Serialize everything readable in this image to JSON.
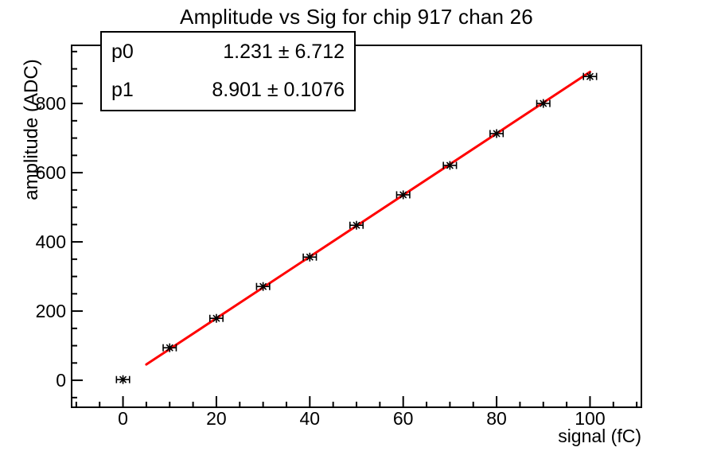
{
  "title": "Amplitude vs Sig for chip 917 chan 26",
  "axes": {
    "x_title": "signal (fC)",
    "y_title": "amplitude (ADC)"
  },
  "stats_box": {
    "rows": [
      {
        "param": "p0",
        "value": "1.231 ± 6.712"
      },
      {
        "param": "p1",
        "value": "8.901 ± 0.1076"
      }
    ]
  },
  "chart_data": {
    "type": "scatter",
    "title": "Amplitude vs Sig for chip 917 chan 26",
    "xlabel": "signal (fC)",
    "ylabel": "amplitude (ADC)",
    "x": [
      0,
      10,
      20,
      30,
      40,
      50,
      60,
      70,
      80,
      90,
      100
    ],
    "y": [
      2,
      94,
      179,
      271,
      356,
      448,
      536,
      621,
      713,
      800,
      878
    ],
    "xerr": 1.4,
    "marker": "star-with-x-error-bars",
    "marker_color": "#000000",
    "fit_line": {
      "p0": 1.231,
      "p1": 8.901,
      "x_range": [
        5,
        100
      ],
      "color": "#ff0000",
      "width": 3
    },
    "fit_params": {
      "p0": "1.231 ± 6.712",
      "p1": "8.901 ± 0.1076"
    },
    "xlim": [
      -11,
      111
    ],
    "ylim": [
      -78,
      968
    ],
    "x_major_ticks": [
      0,
      20,
      40,
      60,
      80,
      100
    ],
    "y_major_ticks": [
      0,
      200,
      400,
      600,
      800
    ],
    "x_minor_step": 5,
    "y_minor_step": 50,
    "grid": false,
    "legend": "none",
    "background": "#ffffff",
    "axis_color": "#000000"
  }
}
